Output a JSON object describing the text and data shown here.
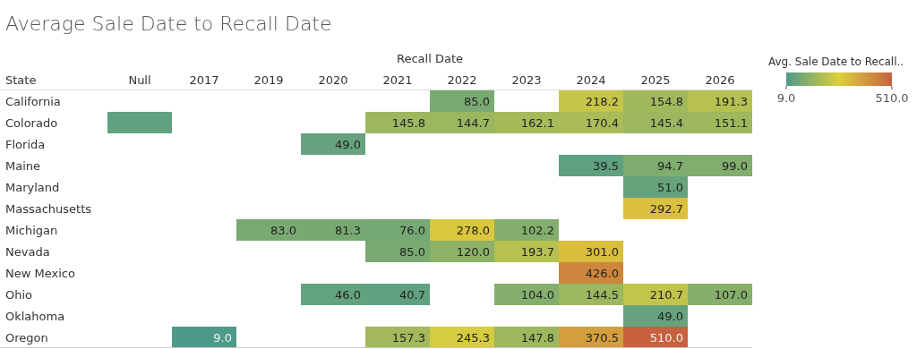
{
  "chart_data": {
    "type": "heatmap",
    "title": "Average Sale Date to Recall Date",
    "xlabel": "Recall Date",
    "ylabel": "State",
    "clabel": "Avg. Sale Date to Recall..",
    "categories": [
      "Null",
      "2017",
      "2019",
      "2020",
      "2021",
      "2022",
      "2023",
      "2024",
      "2025",
      "2026"
    ],
    "y_categories": [
      "California",
      "Colorado",
      "Florida",
      "Maine",
      "Maryland",
      "Massachusetts",
      "Michigan",
      "Nevada",
      "New Mexico",
      "Ohio",
      "Oklahoma",
      "Oregon"
    ],
    "cells": [
      [
        null,
        null,
        null,
        null,
        null,
        85.0,
        null,
        218.2,
        154.8,
        191.3
      ],
      [
        40,
        null,
        null,
        null,
        145.8,
        144.7,
        162.1,
        170.4,
        145.4,
        151.1
      ],
      [
        null,
        null,
        null,
        49.0,
        null,
        null,
        null,
        null,
        null,
        null
      ],
      [
        null,
        null,
        null,
        null,
        null,
        null,
        null,
        39.5,
        94.7,
        99.0
      ],
      [
        null,
        null,
        null,
        null,
        null,
        null,
        null,
        null,
        51.0,
        null
      ],
      [
        null,
        null,
        null,
        null,
        null,
        null,
        null,
        null,
        292.7,
        null
      ],
      [
        null,
        null,
        83.0,
        81.3,
        76.0,
        278.0,
        102.2,
        null,
        null,
        null
      ],
      [
        null,
        null,
        null,
        null,
        85.0,
        120.0,
        193.7,
        301.0,
        null,
        null
      ],
      [
        null,
        null,
        null,
        null,
        null,
        null,
        null,
        426.0,
        null,
        null
      ],
      [
        null,
        null,
        null,
        46.0,
        40.7,
        null,
        104.0,
        144.5,
        210.7,
        107.0
      ],
      [
        null,
        null,
        null,
        null,
        null,
        null,
        null,
        null,
        49.0,
        null
      ],
      [
        null,
        9.0,
        null,
        null,
        157.3,
        245.3,
        147.8,
        370.5,
        510.0,
        null
      ]
    ],
    "cell_labels": [
      [
        null,
        null,
        null,
        null,
        null,
        "85.0",
        null,
        "218.2",
        "154.8",
        "191.3"
      ],
      [
        null,
        null,
        null,
        null,
        "145.8",
        "144.7",
        "162.1",
        "170.4",
        "145.4",
        "151.1"
      ],
      [
        null,
        null,
        null,
        "49.0",
        null,
        null,
        null,
        null,
        null,
        null
      ],
      [
        null,
        null,
        null,
        null,
        null,
        null,
        null,
        "39.5",
        "94.7",
        "99.0"
      ],
      [
        null,
        null,
        null,
        null,
        null,
        null,
        null,
        null,
        "51.0",
        null
      ],
      [
        null,
        null,
        null,
        null,
        null,
        null,
        null,
        null,
        "292.7",
        null
      ],
      [
        null,
        null,
        "83.0",
        "81.3",
        "76.0",
        "278.0",
        "102.2",
        null,
        null,
        null
      ],
      [
        null,
        null,
        null,
        null,
        "85.0",
        "120.0",
        "193.7",
        "301.0",
        null,
        null
      ],
      [
        null,
        null,
        null,
        null,
        null,
        null,
        null,
        "426.0",
        null,
        null
      ],
      [
        null,
        null,
        null,
        "46.0",
        "40.7",
        null,
        "104.0",
        "144.5",
        "210.7",
        "107.0"
      ],
      [
        null,
        null,
        null,
        null,
        null,
        null,
        null,
        null,
        "49.0",
        null
      ],
      [
        null,
        "9.0",
        null,
        null,
        "157.3",
        "245.3",
        "147.8",
        "370.5",
        "510.0",
        null
      ]
    ],
    "clim": [
      9,
      510
    ],
    "cticks": [
      {
        "value": 9,
        "label": "9.0"
      },
      {
        "value": 510,
        "label": "510.0"
      }
    ]
  }
}
